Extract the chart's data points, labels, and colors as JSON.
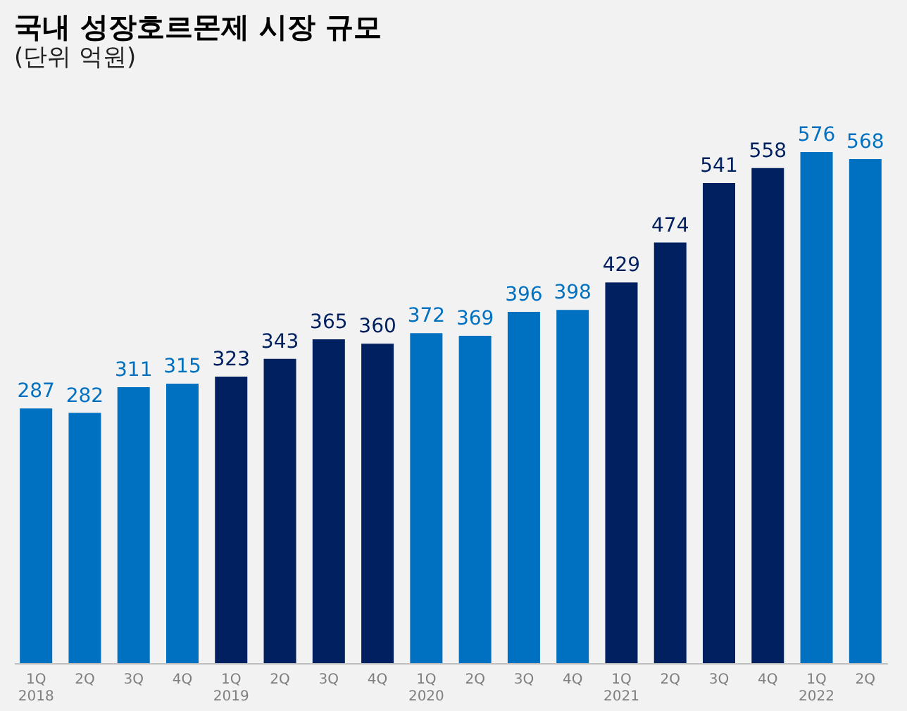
{
  "chart_data": {
    "type": "bar",
    "title": "국내 성장호르몬제 시장 규모",
    "subtitle": "(단위 억원)",
    "categories": [
      "1Q\n2018",
      "2Q",
      "3Q",
      "4Q",
      "1Q\n2019",
      "2Q",
      "3Q",
      "4Q",
      "1Q\n2020",
      "2Q",
      "3Q",
      "4Q",
      "1Q\n2021",
      "2Q",
      "3Q",
      "4Q",
      "1Q\n2022",
      "2Q"
    ],
    "values": [
      287,
      282,
      311,
      315,
      323,
      343,
      365,
      360,
      372,
      369,
      396,
      398,
      429,
      474,
      541,
      558,
      576,
      568
    ],
    "colors": [
      "#0070c0",
      "#0070c0",
      "#0070c0",
      "#0070c0",
      "#002060",
      "#002060",
      "#002060",
      "#002060",
      "#0070c0",
      "#0070c0",
      "#0070c0",
      "#0070c0",
      "#002060",
      "#002060",
      "#002060",
      "#002060",
      "#0070c0",
      "#0070c0"
    ],
    "data_labels": true
  }
}
